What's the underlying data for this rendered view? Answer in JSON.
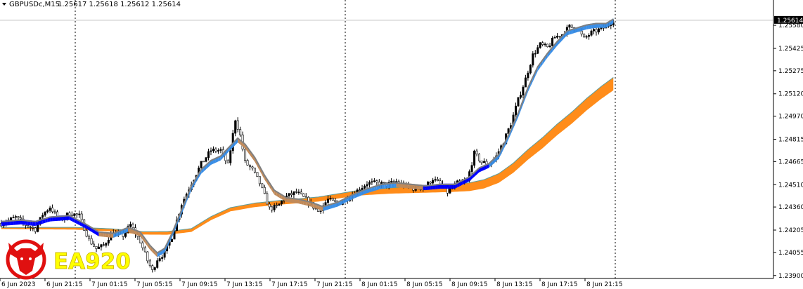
{
  "header": {
    "symbol": "GBPUSDc,M15",
    "ohlc": "1.25617 1.25618 1.25612 1.25614"
  },
  "current_price_label": "1.25614",
  "watermark": {
    "text": "EA920",
    "logo_icon": "bull-head-icon"
  },
  "colors": {
    "bull_candle": "#000000",
    "price_line": "#c0c0c0",
    "fast_band_up": "#3a8ee6",
    "fast_band_down": "#0000ff",
    "fast_line": "#808080",
    "slow_band_up": "#ff8c1a",
    "slow_line": "#5a9e9e",
    "watermark_text": "#ffff00",
    "watermark_logo": "#e01010",
    "current_price_bg": "#000000"
  },
  "chart_data": {
    "type": "candlestick",
    "symbol": "GBPUSDc",
    "timeframe": "M15",
    "ylim": [
      1.2388,
      1.2575
    ],
    "y_ticks": [
      "1.25580",
      "1.25425",
      "1.25275",
      "1.25120",
      "1.24970",
      "1.24815",
      "1.24665",
      "1.24510",
      "1.24360",
      "1.24205",
      "1.24055",
      "1.23900"
    ],
    "x_ticks": [
      "6 Jun 2023",
      "6 Jun 21:15",
      "7 Jun 01:15",
      "7 Jun 05:15",
      "7 Jun 09:15",
      "7 Jun 13:15",
      "7 Jun 17:15",
      "7 Jun 21:15",
      "8 Jun 01:15",
      "8 Jun 05:15",
      "8 Jun 09:15",
      "8 Jun 13:15",
      "8 Jun 17:15",
      "8 Jun 21:15"
    ],
    "period_separators": [
      "7 Jun 00:00",
      "8 Jun 00:00",
      "9 Jun 00:00"
    ],
    "current_price": 1.25614,
    "close_path": [
      [
        0,
        1.2425
      ],
      [
        6,
        1.2429
      ],
      [
        10,
        1.2424
      ],
      [
        14,
        1.2421
      ],
      [
        17,
        1.2431
      ],
      [
        20,
        1.2436
      ],
      [
        24,
        1.2427
      ],
      [
        28,
        1.2432
      ],
      [
        32,
        1.243
      ],
      [
        36,
        1.2414
      ],
      [
        39,
        1.2408
      ],
      [
        42,
        1.241
      ],
      [
        45,
        1.2418
      ],
      [
        50,
        1.2417
      ],
      [
        53,
        1.2424
      ],
      [
        57,
        1.2413
      ],
      [
        60,
        1.24
      ],
      [
        62,
        1.2393
      ],
      [
        64,
        1.2401
      ],
      [
        67,
        1.2405
      ],
      [
        70,
        1.2416
      ],
      [
        74,
        1.2438
      ],
      [
        78,
        1.2452
      ],
      [
        82,
        1.2465
      ],
      [
        86,
        1.2474
      ],
      [
        90,
        1.2474
      ],
      [
        93,
        1.2464
      ],
      [
        96,
        1.2495
      ],
      [
        98,
        1.2484
      ],
      [
        100,
        1.2466
      ],
      [
        103,
        1.2461
      ],
      [
        106,
        1.2452
      ],
      [
        110,
        1.2435
      ],
      [
        113,
        1.2436
      ],
      [
        117,
        1.2443
      ],
      [
        121,
        1.2446
      ],
      [
        125,
        1.2441
      ],
      [
        130,
        1.2433
      ],
      [
        134,
        1.2441
      ],
      [
        138,
        1.2438
      ],
      [
        142,
        1.2442
      ],
      [
        146,
        1.2447
      ],
      [
        150,
        1.2452
      ],
      [
        154,
        1.2452
      ],
      [
        158,
        1.2451
      ],
      [
        162,
        1.2453
      ],
      [
        166,
        1.245
      ],
      [
        170,
        1.2448
      ],
      [
        174,
        1.245
      ],
      [
        177,
        1.2455
      ],
      [
        180,
        1.2451
      ],
      [
        183,
        1.2446
      ],
      [
        187,
        1.2452
      ],
      [
        191,
        1.2453
      ],
      [
        194,
        1.2472
      ],
      [
        197,
        1.2466
      ],
      [
        200,
        1.2465
      ],
      [
        203,
        1.247
      ],
      [
        206,
        1.248
      ],
      [
        209,
        1.2492
      ],
      [
        212,
        1.2508
      ],
      [
        215,
        1.2522
      ],
      [
        218,
        1.2538
      ],
      [
        221,
        1.2545
      ],
      [
        224,
        1.2543
      ],
      [
        227,
        1.255
      ],
      [
        230,
        1.2552
      ],
      [
        233,
        1.2557
      ],
      [
        236,
        1.2556
      ],
      [
        239,
        1.2549
      ],
      [
        242,
        1.2553
      ],
      [
        245,
        1.2555
      ],
      [
        248,
        1.2557
      ],
      [
        251,
        1.25614
      ]
    ],
    "fast_ma_path": [
      [
        0,
        1.2425
      ],
      [
        8,
        1.2426
      ],
      [
        14,
        1.2425
      ],
      [
        20,
        1.2428
      ],
      [
        28,
        1.2429
      ],
      [
        35,
        1.2423
      ],
      [
        40,
        1.2418
      ],
      [
        46,
        1.2417
      ],
      [
        52,
        1.2421
      ],
      [
        57,
        1.2418
      ],
      [
        61,
        1.2409
      ],
      [
        64,
        1.2404
      ],
      [
        67,
        1.2407
      ],
      [
        70,
        1.2417
      ],
      [
        74,
        1.2433
      ],
      [
        78,
        1.2449
      ],
      [
        82,
        1.246
      ],
      [
        86,
        1.2466
      ],
      [
        90,
        1.2469
      ],
      [
        94,
        1.2476
      ],
      [
        97,
        1.2481
      ],
      [
        100,
        1.2477
      ],
      [
        104,
        1.2468
      ],
      [
        108,
        1.2456
      ],
      [
        112,
        1.2446
      ],
      [
        117,
        1.2441
      ],
      [
        122,
        1.244
      ],
      [
        127,
        1.2438
      ],
      [
        132,
        1.2435
      ],
      [
        138,
        1.2438
      ],
      [
        144,
        1.2443
      ],
      [
        150,
        1.2447
      ],
      [
        156,
        1.245
      ],
      [
        162,
        1.2451
      ],
      [
        168,
        1.245
      ],
      [
        174,
        1.2449
      ],
      [
        180,
        1.245
      ],
      [
        186,
        1.245
      ],
      [
        192,
        1.2455
      ],
      [
        196,
        1.2461
      ],
      [
        200,
        1.2464
      ],
      [
        204,
        1.247
      ],
      [
        208,
        1.2483
      ],
      [
        212,
        1.2498
      ],
      [
        216,
        1.2515
      ],
      [
        220,
        1.2529
      ],
      [
        224,
        1.2538
      ],
      [
        228,
        1.2546
      ],
      [
        232,
        1.2553
      ],
      [
        236,
        1.2555
      ],
      [
        240,
        1.2557
      ],
      [
        244,
        1.2558
      ],
      [
        248,
        1.2558
      ],
      [
        251,
        1.2561
      ]
    ],
    "slow_ma_path": [
      [
        0,
        1.2422
      ],
      [
        15,
        1.2422
      ],
      [
        30,
        1.2422
      ],
      [
        45,
        1.2421
      ],
      [
        58,
        1.2419
      ],
      [
        68,
        1.2419
      ],
      [
        78,
        1.2421
      ],
      [
        86,
        1.2429
      ],
      [
        94,
        1.2435
      ],
      [
        104,
        1.2438
      ],
      [
        116,
        1.244
      ],
      [
        130,
        1.2442
      ],
      [
        145,
        1.2446
      ],
      [
        160,
        1.2448
      ],
      [
        172,
        1.2449
      ],
      [
        184,
        1.245
      ],
      [
        192,
        1.2451
      ],
      [
        198,
        1.2453
      ],
      [
        204,
        1.2457
      ],
      [
        210,
        1.2464
      ],
      [
        216,
        1.2473
      ],
      [
        222,
        1.2481
      ],
      [
        228,
        1.249
      ],
      [
        234,
        1.2498
      ],
      [
        240,
        1.2507
      ],
      [
        246,
        1.2515
      ],
      [
        251,
        1.2521
      ]
    ]
  }
}
